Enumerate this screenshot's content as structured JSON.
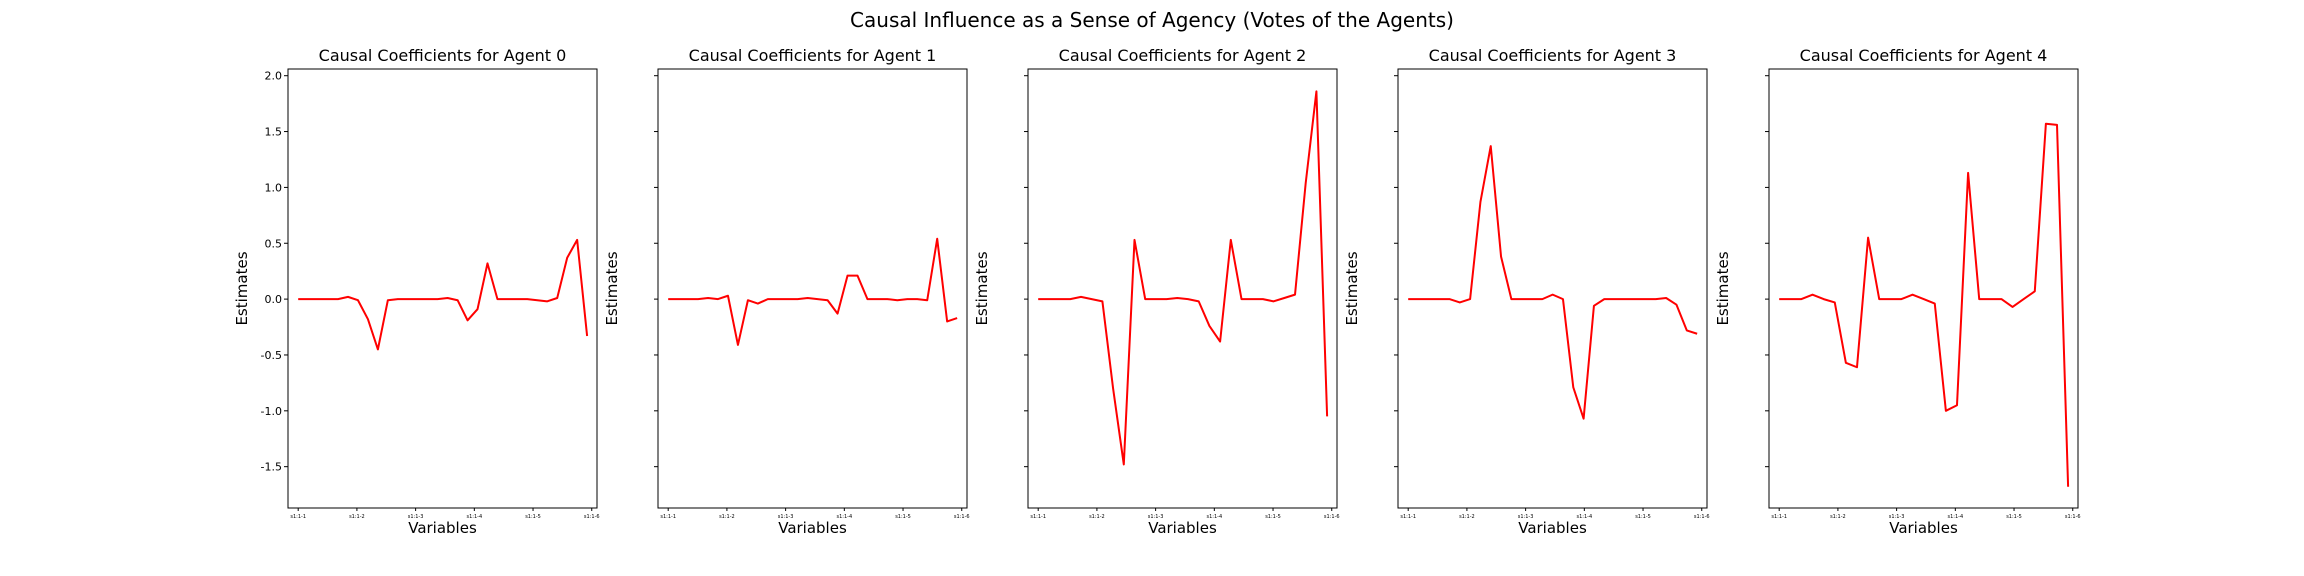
{
  "figure": {
    "suptitle": "Causal Influence as a Sense of Agency (Votes of the Agents)"
  },
  "colors": {
    "line": "#ff0000",
    "axes": "#000000",
    "background": "#ffffff"
  },
  "chart_data": [
    {
      "type": "line",
      "title": "Causal Coefficients for Agent 0",
      "xlabel": "Variables",
      "ylabel": "Estimates",
      "ylim": [
        -1.87,
        2.06
      ],
      "yticks": [
        -1.5,
        -1.0,
        -0.5,
        0.0,
        0.5,
        1.0,
        1.5,
        2.0
      ],
      "show_ytick_labels": true,
      "xticks": [
        "s1:1-1",
        "s1:1-2",
        "s1:1-3",
        "s1:1-4",
        "s1:1-5",
        "s1:1-6"
      ],
      "grid": false,
      "series": [
        {
          "values": [
            0.0,
            0.0,
            0.0,
            0.0,
            0.0,
            0.02,
            -0.01,
            -0.18,
            -0.45,
            -0.01,
            0.0,
            0.0,
            0.0,
            0.0,
            0.0,
            0.01,
            -0.01,
            -0.19,
            -0.09,
            0.32,
            0.0,
            0.0,
            0.0,
            0.0,
            -0.01,
            -0.02,
            0.01,
            0.37,
            0.53,
            -0.33
          ]
        }
      ]
    },
    {
      "type": "line",
      "title": "Causal Coefficients for Agent 1",
      "xlabel": "Variables",
      "ylabel": "Estimates",
      "ylim": [
        -1.87,
        2.06
      ],
      "yticks": [
        -1.5,
        -1.0,
        -0.5,
        0.0,
        0.5,
        1.0,
        1.5,
        2.0
      ],
      "show_ytick_labels": false,
      "xticks": [
        "s1:1-1",
        "s1:1-2",
        "s1:1-3",
        "s1:1-4",
        "s1:1-5",
        "s1:1-6"
      ],
      "grid": false,
      "series": [
        {
          "values": [
            0.0,
            0.0,
            0.0,
            0.0,
            0.01,
            0.0,
            0.03,
            -0.41,
            -0.01,
            -0.04,
            0.0,
            0.0,
            0.0,
            0.0,
            0.01,
            0.0,
            -0.01,
            -0.13,
            0.21,
            0.21,
            0.0,
            0.0,
            0.0,
            -0.01,
            0.0,
            0.0,
            -0.01,
            0.54,
            -0.2,
            -0.17
          ]
        }
      ]
    },
    {
      "type": "line",
      "title": "Causal Coefficients for Agent 2",
      "xlabel": "Variables",
      "ylabel": "Estimates",
      "ylim": [
        -1.87,
        2.06
      ],
      "yticks": [
        -1.5,
        -1.0,
        -0.5,
        0.0,
        0.5,
        1.0,
        1.5,
        2.0
      ],
      "show_ytick_labels": false,
      "xticks": [
        "s1:1-1",
        "s1:1-2",
        "s1:1-3",
        "s1:1-4",
        "s1:1-5",
        "s1:1-6"
      ],
      "grid": false,
      "series": [
        {
          "values": [
            0.0,
            0.0,
            0.0,
            0.0,
            0.02,
            0.0,
            -0.02,
            -0.8,
            -1.48,
            0.53,
            0.0,
            0.0,
            0.0,
            0.01,
            0.0,
            -0.02,
            -0.24,
            -0.38,
            0.53,
            0.0,
            0.0,
            0.0,
            -0.02,
            0.01,
            0.04,
            1.04,
            1.86,
            -1.05
          ]
        }
      ]
    },
    {
      "type": "line",
      "title": "Causal Coefficients for Agent 3",
      "xlabel": "Variables",
      "ylabel": "Estimates",
      "ylim": [
        -1.87,
        2.06
      ],
      "yticks": [
        -1.5,
        -1.0,
        -0.5,
        0.0,
        0.5,
        1.0,
        1.5,
        2.0
      ],
      "show_ytick_labels": false,
      "xticks": [
        "s1:1-1",
        "s1:1-2",
        "s1:1-3",
        "s1:1-4",
        "s1:1-5",
        "s1:1-6"
      ],
      "grid": false,
      "series": [
        {
          "values": [
            0.0,
            0.0,
            0.0,
            0.0,
            0.0,
            -0.03,
            0.0,
            0.87,
            1.37,
            0.38,
            0.0,
            0.0,
            0.0,
            0.0,
            0.04,
            0.0,
            -0.79,
            -1.07,
            -0.06,
            0.0,
            0.0,
            0.0,
            0.0,
            0.0,
            0.0,
            0.01,
            -0.05,
            -0.28,
            -0.31
          ]
        }
      ]
    },
    {
      "type": "line",
      "title": "Causal Coefficients for Agent 4",
      "xlabel": "Variables",
      "ylabel": "Estimates",
      "ylim": [
        -1.87,
        2.06
      ],
      "yticks": [
        -1.5,
        -1.0,
        -0.5,
        0.0,
        0.5,
        1.0,
        1.5,
        2.0
      ],
      "show_ytick_labels": false,
      "xticks": [
        "s1:1-1",
        "s1:1-2",
        "s1:1-3",
        "s1:1-4",
        "s1:1-5",
        "s1:1-6"
      ],
      "grid": false,
      "series": [
        {
          "values": [
            0.0,
            0.0,
            0.0,
            0.04,
            0.0,
            -0.03,
            -0.57,
            -0.61,
            0.55,
            0.0,
            0.0,
            0.0,
            0.04,
            0.0,
            -0.04,
            -1.0,
            -0.95,
            1.13,
            0.0,
            0.0,
            0.0,
            -0.07,
            0.0,
            0.07,
            1.57,
            1.56,
            -1.68
          ]
        }
      ]
    }
  ]
}
